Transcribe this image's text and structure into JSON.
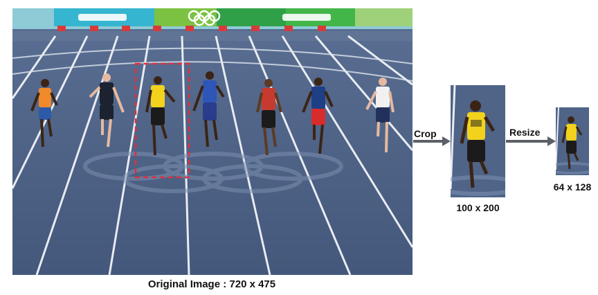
{
  "figure": {
    "steps": [
      {
        "id": "crop",
        "label": "Crop"
      },
      {
        "id": "resize",
        "label": "Resize"
      }
    ],
    "captions": {
      "original": "Original Image : 720 x 475",
      "cropped": "100 x 200",
      "resized": "64 x 128"
    },
    "colors": {
      "track": "#4f6487",
      "track_dark": "#3f5273",
      "lane_line": "#e8ecf2",
      "crop_box": "#e0303a",
      "arrow": "#5b6066",
      "banner_green": "#31a84a",
      "banner_blue": "#2b6fb3"
    }
  }
}
